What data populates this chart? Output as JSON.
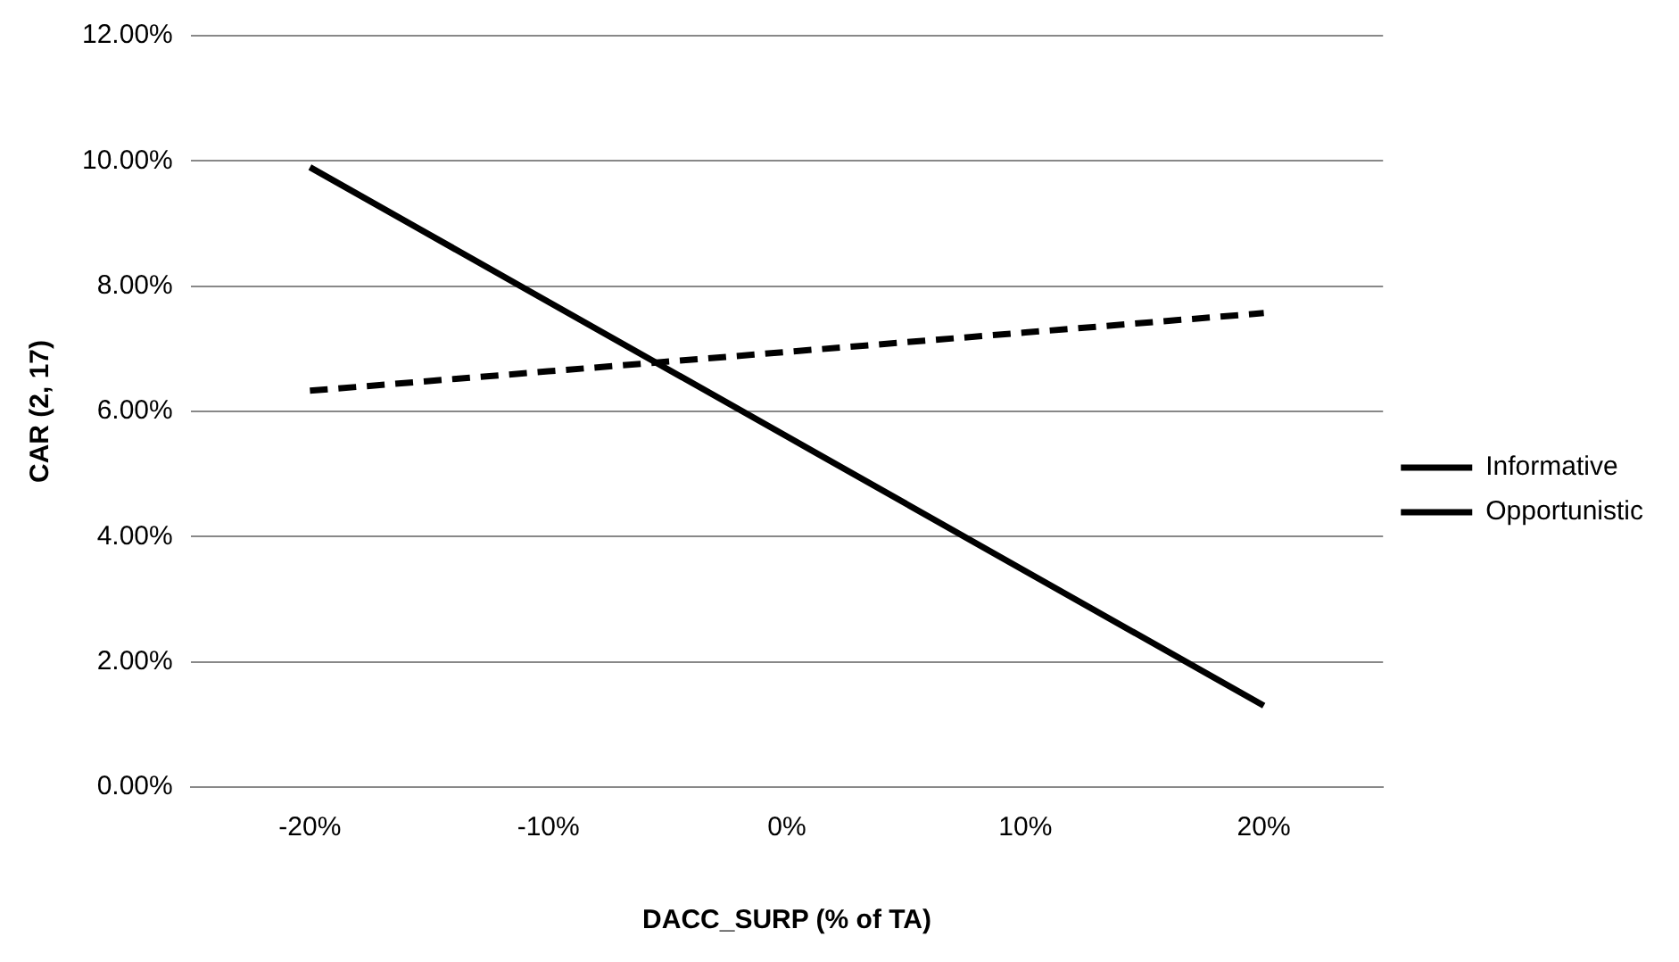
{
  "chart_data": {
    "type": "line",
    "xlabel": "DACC_SURP (% of TA)",
    "ylabel": "CAR (2, 17)",
    "categories": [
      "-20%",
      "-10%",
      "0%",
      "10%",
      "20%"
    ],
    "series": [
      {
        "name": "Informative",
        "color": "#000000",
        "line_style": "dashed",
        "values": [
          6.33,
          6.64,
          6.95,
          7.26,
          7.57
        ]
      },
      {
        "name": "Opportunistic",
        "color": "#000000",
        "line_style": "solid",
        "values": [
          9.9,
          7.75,
          5.6,
          3.45,
          1.3
        ]
      }
    ],
    "ylim": [
      0,
      12
    ],
    "yticks": [
      {
        "value": 0,
        "label": "0.00%"
      },
      {
        "value": 2,
        "label": "2.00%"
      },
      {
        "value": 4,
        "label": "4.00%"
      },
      {
        "value": 6,
        "label": "6.00%"
      },
      {
        "value": 8,
        "label": "8.00%"
      },
      {
        "value": 10,
        "label": "10.00%"
      },
      {
        "value": 12,
        "label": "12.00%"
      }
    ],
    "grid": "y",
    "legend": "right",
    "marker": "none"
  }
}
